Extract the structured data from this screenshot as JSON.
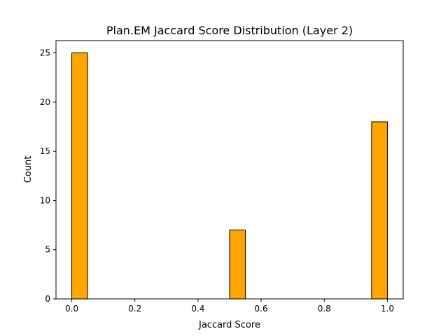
{
  "chart_data": {
    "type": "bar",
    "title": "Plan.EM Jaccard Score Distribution (Layer 2)",
    "xlabel": "Jaccard Score",
    "ylabel": "Count",
    "xlim": [
      -0.05,
      1.05
    ],
    "ylim": [
      0,
      26.25
    ],
    "bins": [
      {
        "x0": 0.0,
        "x1": 0.05,
        "count": 25
      },
      {
        "x0": 0.5,
        "x1": 0.55,
        "count": 7
      },
      {
        "x0": 0.95,
        "x1": 1.0,
        "count": 18
      }
    ],
    "xticks": [
      {
        "value": 0.0,
        "label": "0.0"
      },
      {
        "value": 0.2,
        "label": "0.2"
      },
      {
        "value": 0.4,
        "label": "0.4"
      },
      {
        "value": 0.6,
        "label": "0.6"
      },
      {
        "value": 0.8,
        "label": "0.8"
      },
      {
        "value": 1.0,
        "label": "1.0"
      }
    ],
    "yticks": [
      {
        "value": 0,
        "label": "0"
      },
      {
        "value": 5,
        "label": "5"
      },
      {
        "value": 10,
        "label": "10"
      },
      {
        "value": 15,
        "label": "15"
      },
      {
        "value": 20,
        "label": "20"
      },
      {
        "value": 25,
        "label": "25"
      }
    ],
    "bar_color": "#FFA500",
    "edge_color": "#000000",
    "grid": false
  }
}
